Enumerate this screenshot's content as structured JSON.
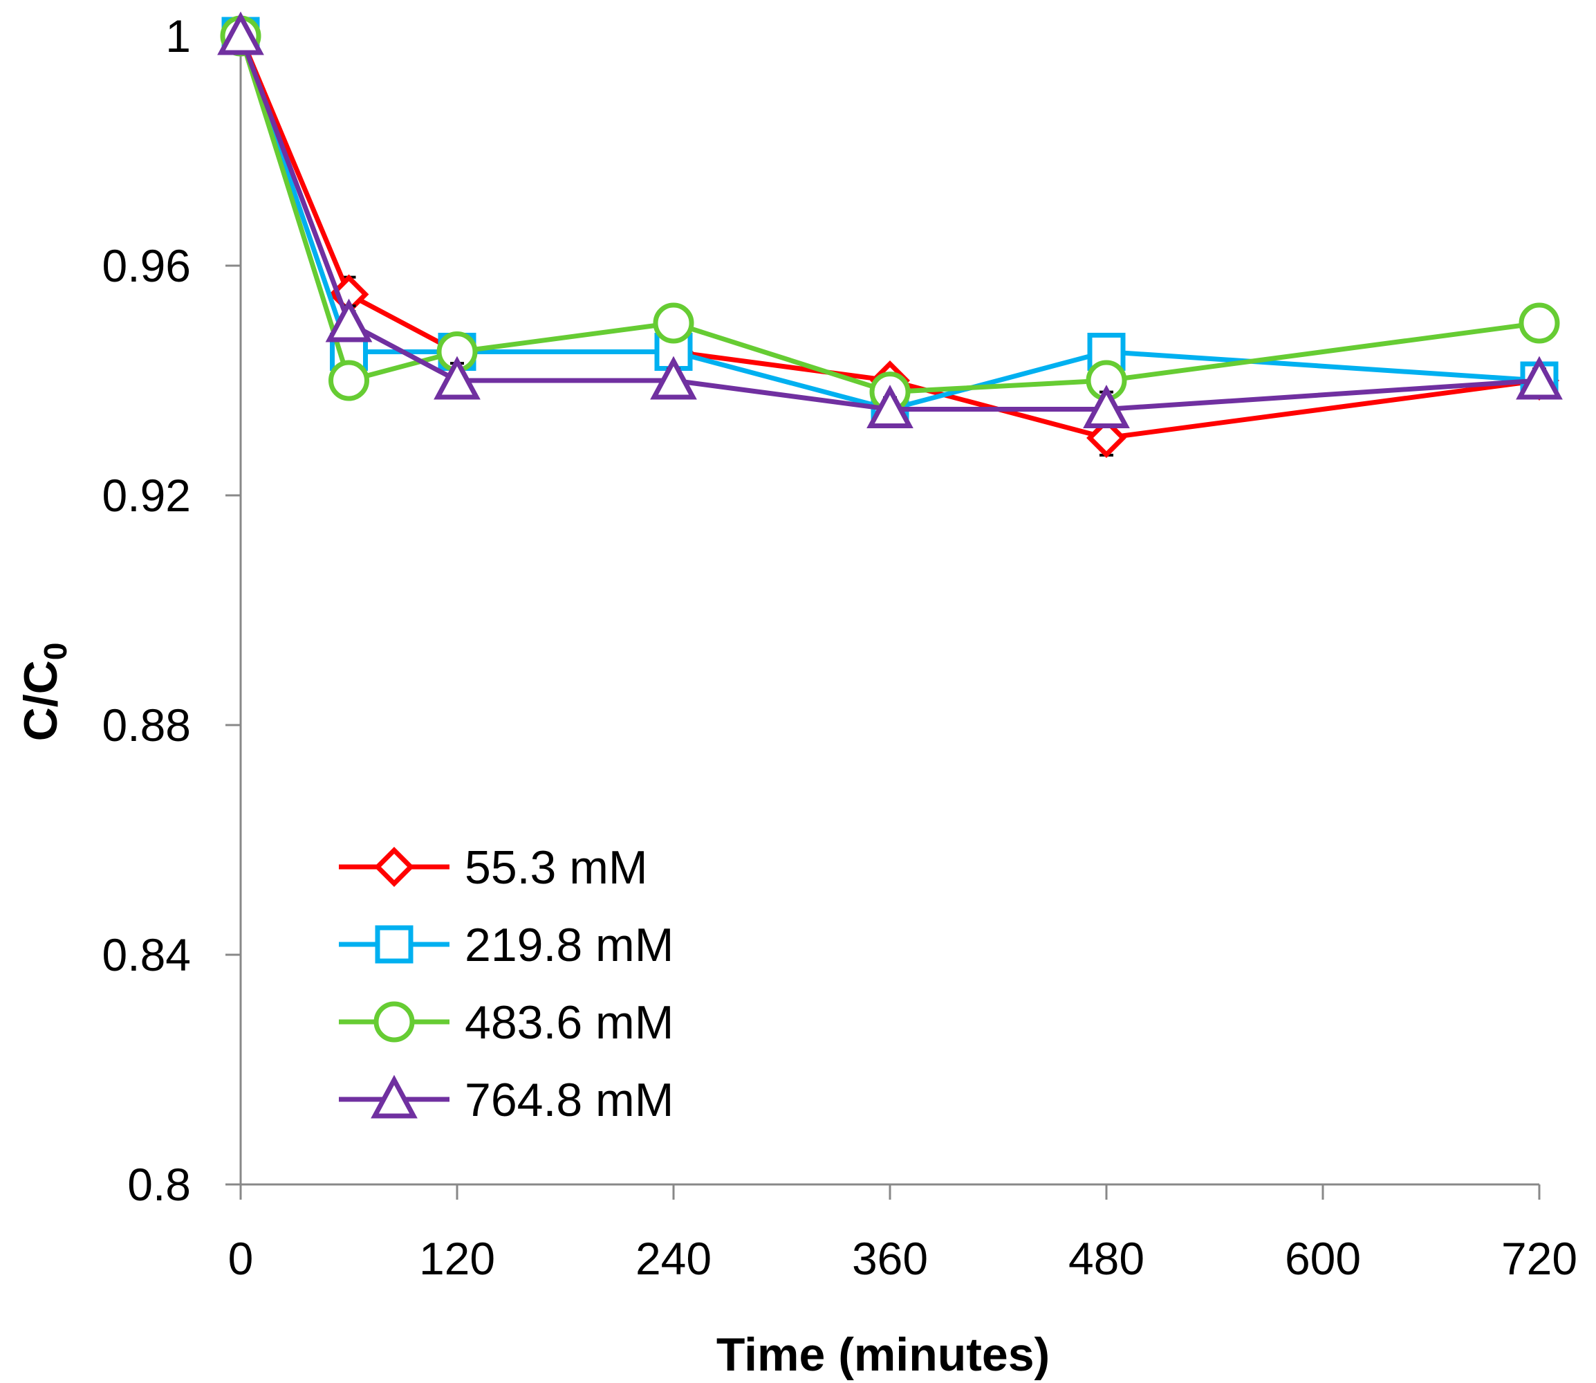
{
  "chart_data": {
    "type": "line",
    "title": "",
    "xlabel": "Time (minutes)",
    "ylabel": {
      "main": "C/C",
      "sub": "0"
    },
    "xlim": [
      0,
      720
    ],
    "ylim": [
      0.8,
      1.0
    ],
    "x_ticks": [
      0,
      120,
      240,
      360,
      480,
      600,
      720
    ],
    "x_tick_labels": [
      "0",
      "120",
      "240",
      "360",
      "480",
      "600",
      "720"
    ],
    "y_ticks": [
      0.8,
      0.84,
      0.88,
      0.92,
      0.96,
      1.0
    ],
    "y_tick_labels": [
      "0.8",
      "0.84",
      "0.88",
      "0.92",
      "0.96",
      "1"
    ],
    "grid": false,
    "legend_position": "bottom-left",
    "x": [
      0,
      60,
      120,
      240,
      360,
      480,
      720
    ],
    "series": [
      {
        "name": "55.3 mM",
        "color": "#ff0000",
        "marker": "diamond",
        "values": [
          1.0,
          0.955,
          0.945,
          0.945,
          0.94,
          0.93,
          0.94
        ],
        "errors": [
          0,
          0.003,
          0.002,
          0.002,
          0.002,
          0.003,
          0.002
        ]
      },
      {
        "name": "219.8 mM",
        "color": "#00b0f0",
        "marker": "square",
        "values": [
          1.0,
          0.945,
          0.945,
          0.945,
          0.935,
          0.945,
          0.94
        ],
        "errors": [
          0,
          0.003,
          0.003,
          0.003,
          0.002,
          0.003,
          0.002
        ]
      },
      {
        "name": "483.6 mM",
        "color": "#66cc33",
        "marker": "circle",
        "values": [
          1.0,
          0.94,
          0.945,
          0.95,
          0.938,
          0.94,
          0.95
        ],
        "errors": [
          0,
          0.002,
          0.002,
          0.003,
          0.002,
          0.002,
          0.003
        ]
      },
      {
        "name": "764.8 mM",
        "color": "#7030a0",
        "marker": "triangle",
        "values": [
          1.0,
          0.95,
          0.94,
          0.94,
          0.935,
          0.935,
          0.94
        ],
        "errors": [
          0,
          0.003,
          0.003,
          0.002,
          0.002,
          0.003,
          0.002
        ]
      }
    ]
  },
  "colors": {
    "axis": "#888888",
    "error_bar": "#000000"
  }
}
